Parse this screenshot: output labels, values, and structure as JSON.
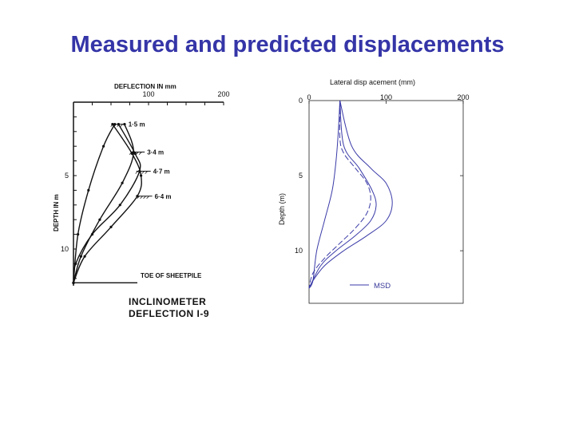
{
  "page": {
    "title": "Measured and predicted displacements"
  },
  "chart_data": [
    {
      "type": "line",
      "title": "DEFLECTION IN mm",
      "ylabel": "DEPTH IN m",
      "x_ticks": [
        "100",
        "200"
      ],
      "y_ticks": [
        "5",
        "10"
      ],
      "xlim": [
        0,
        200
      ],
      "ylim": [
        0,
        12.5
      ],
      "series": [
        {
          "name": "1·5 m",
          "x": [
            55,
            40,
            20,
            6,
            0
          ],
          "y": [
            1.5,
            3,
            6,
            9,
            12.3
          ]
        },
        {
          "name": "3·4 m",
          "x": [
            68,
            80,
            65,
            35,
            10,
            0
          ],
          "y": [
            1.5,
            3.4,
            5.5,
            8,
            10.5,
            12.3
          ]
        },
        {
          "name": "4·7 m",
          "x": [
            60,
            82,
            88,
            62,
            25,
            3,
            0
          ],
          "y": [
            1.5,
            3.5,
            4.7,
            7,
            9,
            11,
            12.3
          ]
        },
        {
          "name": "6·4 m",
          "x": [
            52,
            78,
            90,
            85,
            50,
            15,
            0
          ],
          "y": [
            1.5,
            3.5,
            5,
            6.4,
            8.5,
            10.5,
            12.3
          ]
        }
      ],
      "annotations": {
        "toe": "TOE OF SHEETPILE",
        "caption_line1": "INCLINOMETER",
        "caption_line2": "DEFLECTION I-9"
      }
    },
    {
      "type": "line",
      "title": "Lateral disp acement (mm)",
      "ylabel": "Depth (m)",
      "x_ticks": [
        "0",
        "100",
        "200"
      ],
      "y_ticks": [
        "0",
        "5",
        "10"
      ],
      "xlim": [
        0,
        200
      ],
      "ylim": [
        0,
        13.5
      ],
      "legend": {
        "label": "MSD",
        "position": "bottom-right"
      },
      "series": [
        {
          "x": [
            40,
            38,
            35,
            30,
            20,
            10,
            5,
            0
          ],
          "y": [
            0,
            2,
            4,
            6,
            8,
            10,
            12,
            12.5
          ]
        },
        {
          "x": [
            40,
            40,
            45,
            60,
            75,
            80,
            75,
            60,
            40,
            20,
            5,
            0
          ],
          "y": [
            0,
            2.5,
            3.5,
            4.5,
            5.5,
            6.5,
            7.5,
            8.5,
            9.5,
            10.5,
            11.5,
            12.5
          ]
        },
        {
          "x": [
            40,
            45,
            65,
            82,
            87,
            80,
            60,
            35,
            15,
            0
          ],
          "y": [
            0,
            3,
            4.5,
            6,
            7,
            8,
            9,
            10,
            11,
            12.5
          ]
        },
        {
          "x": [
            40,
            55,
            80,
            100,
            108,
            100,
            75,
            45,
            20,
            5,
            0
          ],
          "y": [
            0,
            3,
            4.5,
            5.5,
            6.8,
            8,
            9,
            10,
            11,
            12,
            12.5
          ]
        }
      ]
    }
  ]
}
